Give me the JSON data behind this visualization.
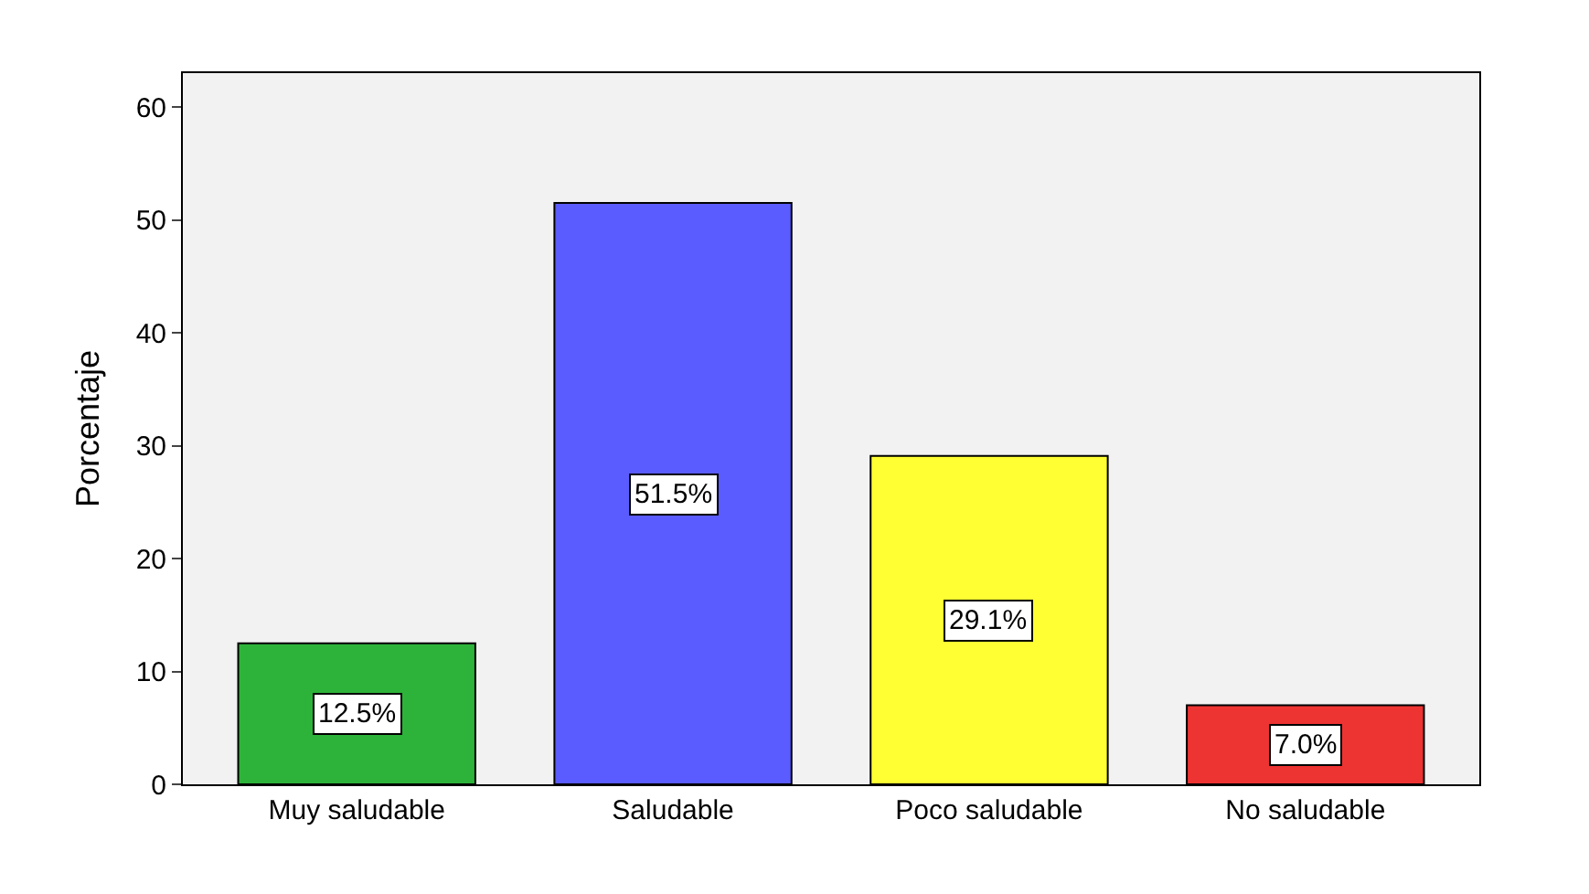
{
  "chart_data": {
    "type": "bar",
    "ylabel": "Porcentaje",
    "categories": [
      "Muy saludable",
      "Saludable",
      "Poco saludable",
      "No saludable"
    ],
    "values": [
      12.5,
      51.5,
      29.1,
      7.0
    ],
    "colors": [
      "#2eb33a",
      "#5a5cff",
      "#ffff33",
      "#ee3333"
    ],
    "value_labels": [
      "12.5%",
      "51.5%",
      "29.1%",
      "7.0%"
    ],
    "ylim": [
      0,
      63
    ],
    "yticks": [
      0,
      10,
      20,
      30,
      40,
      50,
      60
    ],
    "grid": false,
    "legend": false
  }
}
